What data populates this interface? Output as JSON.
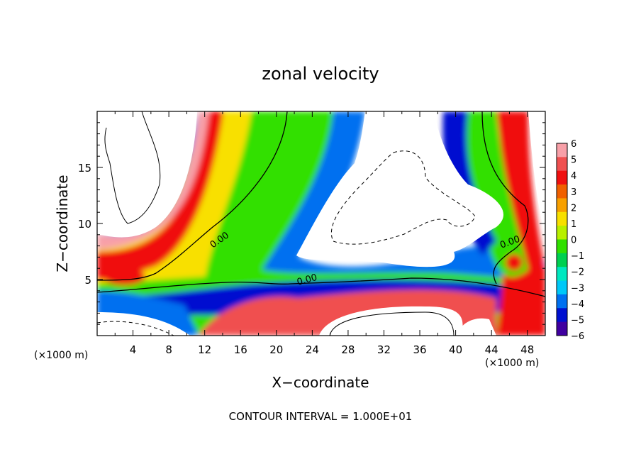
{
  "chart_data": {
    "type": "heatmap",
    "title": "zonal velocity",
    "xlabel": "X−coordinate",
    "ylabel": "Z−coordinate",
    "x_units_left": "(×1000 m)",
    "x_units_right": "(×1000 m)",
    "footer": "CONTOUR INTERVAL = 1.000E+01",
    "xlim": [
      0,
      50
    ],
    "ylim": [
      0,
      20
    ],
    "x_ticks": [
      4,
      8,
      12,
      16,
      20,
      24,
      28,
      32,
      36,
      40,
      44,
      48
    ],
    "y_ticks": [
      5,
      10,
      15
    ],
    "x_tick_labels": [
      "4",
      "8",
      "12",
      "16",
      "20",
      "24",
      "28",
      "32",
      "36",
      "40",
      "44",
      "48"
    ],
    "y_tick_labels": [
      "5",
      "10",
      "15"
    ],
    "colorbar": {
      "range": [
        -6,
        6
      ],
      "tick_labels": [
        "6",
        "5",
        "4",
        "3",
        "2",
        "1",
        "0",
        "−1",
        "−2",
        "−3",
        "−4",
        "−5",
        "−6"
      ],
      "colors": [
        "#f8a0a8",
        "#f05050",
        "#f01010",
        "#f06000",
        "#f8a000",
        "#f8e000",
        "#b8f000",
        "#30e000",
        "#00d050",
        "#00e8c0",
        "#00c8f8",
        "#0070f0",
        "#0010d0",
        "#4000a0"
      ]
    },
    "contour_labels": [
      "0.00",
      "0.00",
      "0.00"
    ]
  }
}
